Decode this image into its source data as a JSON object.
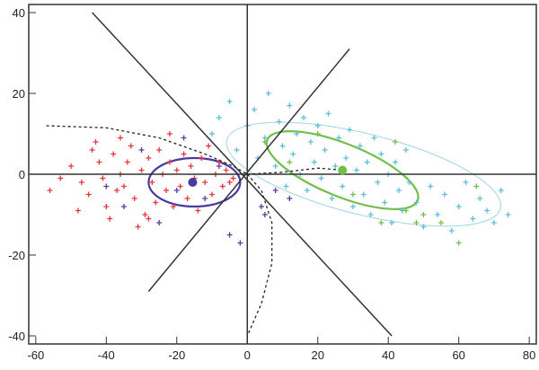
{
  "chart_data": {
    "type": "scatter",
    "title": "",
    "xlabel": "",
    "ylabel": "",
    "xlim": [
      -62,
      82
    ],
    "ylim": [
      -42,
      42
    ],
    "grid": false,
    "x_ticks": [
      "-60",
      "-40",
      "-20",
      "0",
      "20",
      "40",
      "60",
      "80"
    ],
    "y_ticks": [
      "40",
      "20",
      "0",
      "-20",
      "-40"
    ],
    "x_tick_values": [
      -60,
      -40,
      -20,
      0,
      20,
      40,
      60,
      80
    ],
    "y_tick_values": [
      40,
      20,
      0,
      -20,
      -40
    ],
    "marker": "plus",
    "series": [
      {
        "color": "#e8343b",
        "points": [
          [
            -50,
            2
          ],
          [
            -45,
            -5
          ],
          [
            -42,
            3
          ],
          [
            -40,
            -8
          ],
          [
            -38,
            5
          ],
          [
            -36,
            0
          ],
          [
            -35,
            -3
          ],
          [
            -33,
            7
          ],
          [
            -32,
            -6
          ],
          [
            -30,
            1
          ],
          [
            -29,
            -10
          ],
          [
            -28,
            4
          ],
          [
            -27,
            -2
          ],
          [
            -26,
            -7
          ],
          [
            -25,
            6
          ],
          [
            -24,
            0
          ],
          [
            -23,
            -4
          ],
          [
            -22,
            3
          ],
          [
            -21,
            -8
          ],
          [
            -20,
            1
          ],
          [
            -19,
            -3
          ],
          [
            -18,
            5
          ],
          [
            -17,
            -6
          ],
          [
            -16,
            2
          ],
          [
            -15,
            -1
          ],
          [
            -14,
            -9
          ],
          [
            -13,
            4
          ],
          [
            -12,
            -2
          ],
          [
            -11,
            7
          ],
          [
            -10,
            -5
          ],
          [
            -9,
            0
          ],
          [
            -8,
            3
          ],
          [
            -7,
            -3
          ],
          [
            -6,
            1
          ],
          [
            -5,
            -2
          ],
          [
            -4,
            -1
          ],
          [
            -47,
            -2
          ],
          [
            -44,
            6
          ],
          [
            -41,
            -1
          ],
          [
            -39,
            -11
          ],
          [
            -37,
            -4
          ],
          [
            -34,
            3
          ],
          [
            -31,
            -13
          ],
          [
            -53,
            -1
          ],
          [
            -56,
            -4
          ],
          [
            -48,
            -9
          ],
          [
            -43,
            8
          ],
          [
            -36,
            9
          ],
          [
            -28,
            -11
          ],
          [
            -22,
            10
          ]
        ]
      },
      {
        "color": "#5bbfd6",
        "points": [
          [
            -10,
            10
          ],
          [
            -8,
            14
          ],
          [
            -5,
            18
          ],
          [
            -3,
            6
          ],
          [
            0,
            12
          ],
          [
            2,
            16
          ],
          [
            3,
            4
          ],
          [
            5,
            9
          ],
          [
            6,
            20
          ],
          [
            8,
            2
          ],
          [
            9,
            13
          ],
          [
            10,
            7
          ],
          [
            11,
            -3
          ],
          [
            12,
            17
          ],
          [
            13,
            5
          ],
          [
            14,
            10
          ],
          [
            15,
            0
          ],
          [
            16,
            14
          ],
          [
            17,
            -4
          ],
          [
            18,
            8
          ],
          [
            19,
            3
          ],
          [
            20,
            12
          ],
          [
            21,
            -1
          ],
          [
            22,
            6
          ],
          [
            23,
            15
          ],
          [
            24,
            -6
          ],
          [
            25,
            2
          ],
          [
            26,
            9
          ],
          [
            27,
            -3
          ],
          [
            28,
            4
          ],
          [
            29,
            11
          ],
          [
            30,
            -8
          ],
          [
            31,
            1
          ],
          [
            32,
            7
          ],
          [
            33,
            -5
          ],
          [
            34,
            3
          ],
          [
            35,
            -10
          ],
          [
            36,
            9
          ],
          [
            37,
            -2
          ],
          [
            38,
            5
          ],
          [
            39,
            -7
          ],
          [
            40,
            0
          ],
          [
            41,
            -12
          ],
          [
            42,
            3
          ],
          [
            43,
            -4
          ],
          [
            44,
            -9
          ],
          [
            45,
            6
          ],
          [
            46,
            -2
          ],
          [
            48,
            -7
          ],
          [
            50,
            -13
          ],
          [
            52,
            -3
          ],
          [
            54,
            -10
          ],
          [
            56,
            -5
          ],
          [
            58,
            -14
          ],
          [
            60,
            -8
          ],
          [
            62,
            -2
          ],
          [
            64,
            -11
          ],
          [
            66,
            -6
          ],
          [
            68,
            -9
          ],
          [
            70,
            -12
          ],
          [
            72,
            -4
          ],
          [
            74,
            -10
          ]
        ]
      },
      {
        "color": "#5a3b9e",
        "points": [
          [
            -35,
            -8
          ],
          [
            -30,
            6
          ],
          [
            -25,
            -12
          ],
          [
            -20,
            -4
          ],
          [
            -18,
            9
          ],
          [
            -12,
            -6
          ],
          [
            -8,
            2
          ],
          [
            -5,
            -15
          ],
          [
            4,
            -8
          ],
          [
            5,
            -10
          ],
          [
            8,
            -4
          ],
          [
            12,
            -6
          ],
          [
            -2,
            -17
          ],
          [
            -40,
            -3
          ]
        ]
      },
      {
        "color": "#6fbf4a",
        "points": [
          [
            5,
            8
          ],
          [
            12,
            3
          ],
          [
            20,
            10
          ],
          [
            30,
            -5
          ],
          [
            38,
            -12
          ],
          [
            45,
            -9
          ],
          [
            48,
            -12
          ],
          [
            50,
            -10
          ],
          [
            55,
            -12
          ],
          [
            60,
            -17
          ],
          [
            65,
            -3
          ],
          [
            42,
            8
          ]
        ]
      }
    ],
    "means": [
      {
        "color": "#4a3aa0",
        "x": -15.5,
        "y": -2
      },
      {
        "color": "#6fbf4a",
        "x": 27,
        "y": 1
      }
    ],
    "ellipses": [
      {
        "color": "#4a3aa0",
        "cx": -15,
        "cy": -2,
        "rx": 13,
        "ry": 6,
        "angle_deg": 0
      },
      {
        "color": "#6fbf4a",
        "cx": 27,
        "cy": 1,
        "rx": 23,
        "ry": 6.5,
        "angle_deg": -22
      },
      {
        "color": "#9fd6e4",
        "cx": 33,
        "cy": 0,
        "rx": 40,
        "ry": 10,
        "angle_deg": -14
      }
    ],
    "lines": [
      {
        "from": [
          -44,
          40
        ],
        "to": [
          41,
          -40
        ]
      },
      {
        "from": [
          -28,
          -29
        ],
        "to": [
          29,
          31
        ]
      },
      {
        "from": [
          -62,
          0
        ],
        "to": [
          82,
          0
        ]
      },
      {
        "from": [
          0,
          42
        ],
        "to": [
          0,
          -42
        ]
      }
    ],
    "dashed_curves": [
      [
        [
          -57,
          12
        ],
        [
          -40,
          11.5
        ],
        [
          -25,
          9
        ],
        [
          -12,
          5
        ],
        [
          -4,
          2
        ],
        [
          0,
          0
        ]
      ],
      [
        [
          0,
          0
        ],
        [
          4,
          -4
        ],
        [
          7,
          -12
        ],
        [
          7,
          -22
        ],
        [
          4,
          -32
        ],
        [
          0,
          -40
        ]
      ],
      [
        [
          0,
          0
        ],
        [
          10,
          0.5
        ],
        [
          20,
          1.5
        ],
        [
          27,
          1
        ]
      ]
    ]
  }
}
